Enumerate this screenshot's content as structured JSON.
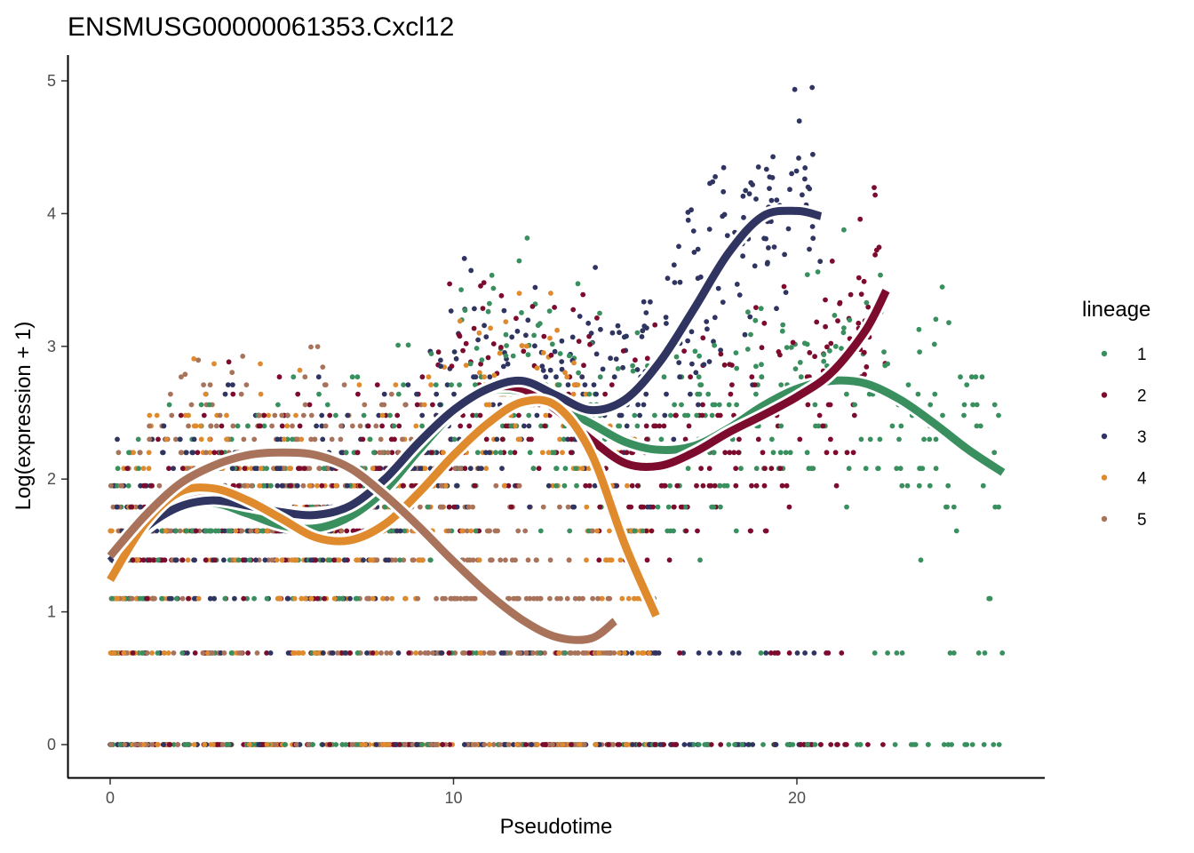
{
  "chart_data": {
    "type": "scatter",
    "title": "ENSMUSG00000061353.Cxcl12",
    "xlabel": "Pseudotime",
    "ylabel": "Log(expression + 1)",
    "xlim": [
      -1.3,
      27.1
    ],
    "ylim": [
      -0.25,
      5.2
    ],
    "x_ticks": [
      "0",
      "10",
      "20"
    ],
    "y_ticks": [
      "0",
      "1",
      "2",
      "3",
      "4",
      "5"
    ],
    "grid": false,
    "legend": {
      "title": "lineage",
      "position": "right"
    },
    "expression_levels": [
      0,
      0.69,
      1.1,
      1.39,
      1.61,
      1.79,
      1.95,
      2.08,
      2.2,
      2.3,
      2.4,
      2.48,
      2.56,
      2.64,
      2.71,
      2.77
    ],
    "series": [
      {
        "name": "1",
        "color": "#3a8f5f",
        "x_range": [
          0,
          26
        ],
        "smooth": [
          [
            0,
            1.38
          ],
          [
            1,
            1.62
          ],
          [
            2,
            1.78
          ],
          [
            3,
            1.82
          ],
          [
            4,
            1.74
          ],
          [
            5,
            1.65
          ],
          [
            6,
            1.63
          ],
          [
            7,
            1.72
          ],
          [
            8,
            1.92
          ],
          [
            9,
            2.22
          ],
          [
            10,
            2.5
          ],
          [
            11,
            2.66
          ],
          [
            12,
            2.66
          ],
          [
            13,
            2.55
          ],
          [
            14,
            2.42
          ],
          [
            15,
            2.28
          ],
          [
            16,
            2.22
          ],
          [
            17,
            2.25
          ],
          [
            18,
            2.38
          ],
          [
            19,
            2.55
          ],
          [
            20,
            2.68
          ],
          [
            21,
            2.74
          ],
          [
            22,
            2.72
          ],
          [
            23,
            2.6
          ],
          [
            24,
            2.42
          ],
          [
            25,
            2.22
          ],
          [
            26,
            2.05
          ]
        ]
      },
      {
        "name": "2",
        "color": "#7d0b2e",
        "x_range": [
          0,
          22.6
        ],
        "smooth": [
          [
            0,
            1.38
          ],
          [
            1,
            1.64
          ],
          [
            2,
            1.81
          ],
          [
            3,
            1.86
          ],
          [
            4,
            1.81
          ],
          [
            5,
            1.76
          ],
          [
            6,
            1.74
          ],
          [
            7,
            1.8
          ],
          [
            8,
            2.0
          ],
          [
            9,
            2.28
          ],
          [
            10,
            2.52
          ],
          [
            11,
            2.68
          ],
          [
            12,
            2.68
          ],
          [
            13,
            2.52
          ],
          [
            14,
            2.3
          ],
          [
            15,
            2.12
          ],
          [
            16,
            2.1
          ],
          [
            17,
            2.2
          ],
          [
            18,
            2.35
          ],
          [
            19,
            2.48
          ],
          [
            20,
            2.62
          ],
          [
            21,
            2.8
          ],
          [
            22,
            3.12
          ],
          [
            22.6,
            3.42
          ]
        ]
      },
      {
        "name": "3",
        "color": "#2f3461",
        "x_range": [
          0,
          20.7
        ],
        "smooth": [
          [
            0,
            1.38
          ],
          [
            1,
            1.63
          ],
          [
            2,
            1.79
          ],
          [
            3,
            1.84
          ],
          [
            4,
            1.8
          ],
          [
            5,
            1.75
          ],
          [
            6,
            1.73
          ],
          [
            7,
            1.8
          ],
          [
            8,
            2.0
          ],
          [
            9,
            2.28
          ],
          [
            10,
            2.52
          ],
          [
            11,
            2.68
          ],
          [
            12,
            2.74
          ],
          [
            13,
            2.63
          ],
          [
            14,
            2.52
          ],
          [
            15,
            2.6
          ],
          [
            16,
            2.88
          ],
          [
            17,
            3.28
          ],
          [
            18,
            3.7
          ],
          [
            19,
            3.98
          ],
          [
            20,
            4.02
          ],
          [
            20.7,
            3.98
          ]
        ]
      },
      {
        "name": "4",
        "color": "#e08a2e",
        "x_range": [
          0,
          15.9
        ],
        "smooth": [
          [
            0,
            1.24
          ],
          [
            1,
            1.66
          ],
          [
            2,
            1.9
          ],
          [
            3,
            1.93
          ],
          [
            4,
            1.84
          ],
          [
            5,
            1.7
          ],
          [
            6,
            1.56
          ],
          [
            7,
            1.54
          ],
          [
            8,
            1.66
          ],
          [
            9,
            1.9
          ],
          [
            10,
            2.18
          ],
          [
            11,
            2.42
          ],
          [
            12,
            2.58
          ],
          [
            13,
            2.55
          ],
          [
            14,
            2.2
          ],
          [
            15,
            1.5
          ],
          [
            15.9,
            0.97
          ]
        ]
      },
      {
        "name": "5",
        "color": "#a8735a",
        "x_range": [
          0,
          14.7
        ],
        "smooth": [
          [
            0,
            1.42
          ],
          [
            1,
            1.72
          ],
          [
            2,
            1.96
          ],
          [
            3,
            2.1
          ],
          [
            4,
            2.18
          ],
          [
            5,
            2.2
          ],
          [
            6,
            2.18
          ],
          [
            7,
            2.08
          ],
          [
            8,
            1.88
          ],
          [
            9,
            1.64
          ],
          [
            10,
            1.38
          ],
          [
            11,
            1.14
          ],
          [
            12,
            0.94
          ],
          [
            13,
            0.81
          ],
          [
            14,
            0.8
          ],
          [
            14.7,
            0.93
          ]
        ]
      }
    ]
  }
}
